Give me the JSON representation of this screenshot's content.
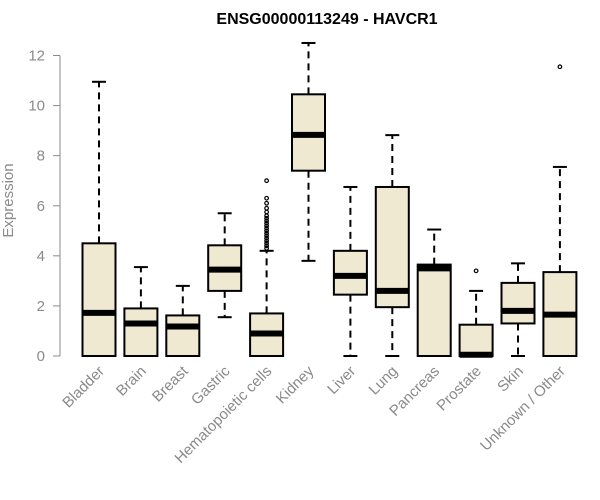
{
  "chart_data": {
    "type": "boxplot",
    "title": "ENSG00000113249 - HAVCR1",
    "xlabel": "",
    "ylabel": "Expression",
    "ylim": [
      0,
      12.5
    ],
    "yticks": [
      0,
      2,
      4,
      6,
      8,
      10,
      12
    ],
    "box_fill": "#efe9d2",
    "box_stroke": "#000000",
    "axis_color": "#8a8a8a",
    "categories": [
      "Bladder",
      "Brain",
      "Breast",
      "Gastric",
      "Hematopoietic cells",
      "Kidney",
      "Liver",
      "Lung",
      "Pancreas",
      "Prostate",
      "Skin",
      "Unknown / Other"
    ],
    "boxes": [
      {
        "name": "Bladder",
        "whisker_low": 0,
        "q1": 0,
        "median": 1.72,
        "q3": 4.5,
        "whisker_high": 10.95,
        "outliers": []
      },
      {
        "name": "Brain",
        "whisker_low": 0,
        "q1": 0,
        "median": 1.3,
        "q3": 1.9,
        "whisker_high": 3.55,
        "outliers": []
      },
      {
        "name": "Breast",
        "whisker_low": 0,
        "q1": 0,
        "median": 1.18,
        "q3": 1.62,
        "whisker_high": 2.8,
        "outliers": []
      },
      {
        "name": "Gastric",
        "whisker_low": 1.55,
        "q1": 2.6,
        "median": 3.45,
        "q3": 4.42,
        "whisker_high": 5.7,
        "outliers": []
      },
      {
        "name": "Hematopoietic cells",
        "whisker_low": 0,
        "q1": 0,
        "median": 0.9,
        "q3": 1.7,
        "whisker_high": 4.2,
        "outliers": [
          4.3,
          4.4,
          4.5,
          4.6,
          4.7,
          4.8,
          4.9,
          5.0,
          5.1,
          5.2,
          5.3,
          5.4,
          5.5,
          5.6,
          5.75,
          5.9,
          6.1,
          6.3,
          7.0
        ]
      },
      {
        "name": "Kidney",
        "whisker_low": 3.8,
        "q1": 7.4,
        "median": 8.83,
        "q3": 10.45,
        "whisker_high": 12.5,
        "outliers": []
      },
      {
        "name": "Liver",
        "whisker_low": 0,
        "q1": 2.45,
        "median": 3.2,
        "q3": 4.2,
        "whisker_high": 6.75,
        "outliers": []
      },
      {
        "name": "Lung",
        "whisker_low": 0,
        "q1": 1.95,
        "median": 2.6,
        "q3": 6.75,
        "whisker_high": 8.82,
        "outliers": []
      },
      {
        "name": "Pancreas",
        "whisker_low": 0,
        "q1": 0,
        "median": 3.5,
        "q3": 3.65,
        "whisker_high": 5.05,
        "outliers": []
      },
      {
        "name": "Prostate",
        "whisker_low": 0,
        "q1": 0,
        "median": 0.05,
        "q3": 1.25,
        "whisker_high": 2.6,
        "outliers": [
          3.4
        ]
      },
      {
        "name": "Skin",
        "whisker_low": 0,
        "q1": 1.3,
        "median": 1.8,
        "q3": 2.92,
        "whisker_high": 3.7,
        "outliers": []
      },
      {
        "name": "Unknown / Other",
        "whisker_low": 0,
        "q1": 0,
        "median": 1.65,
        "q3": 3.35,
        "whisker_high": 7.55,
        "outliers": [
          11.55
        ]
      }
    ]
  }
}
